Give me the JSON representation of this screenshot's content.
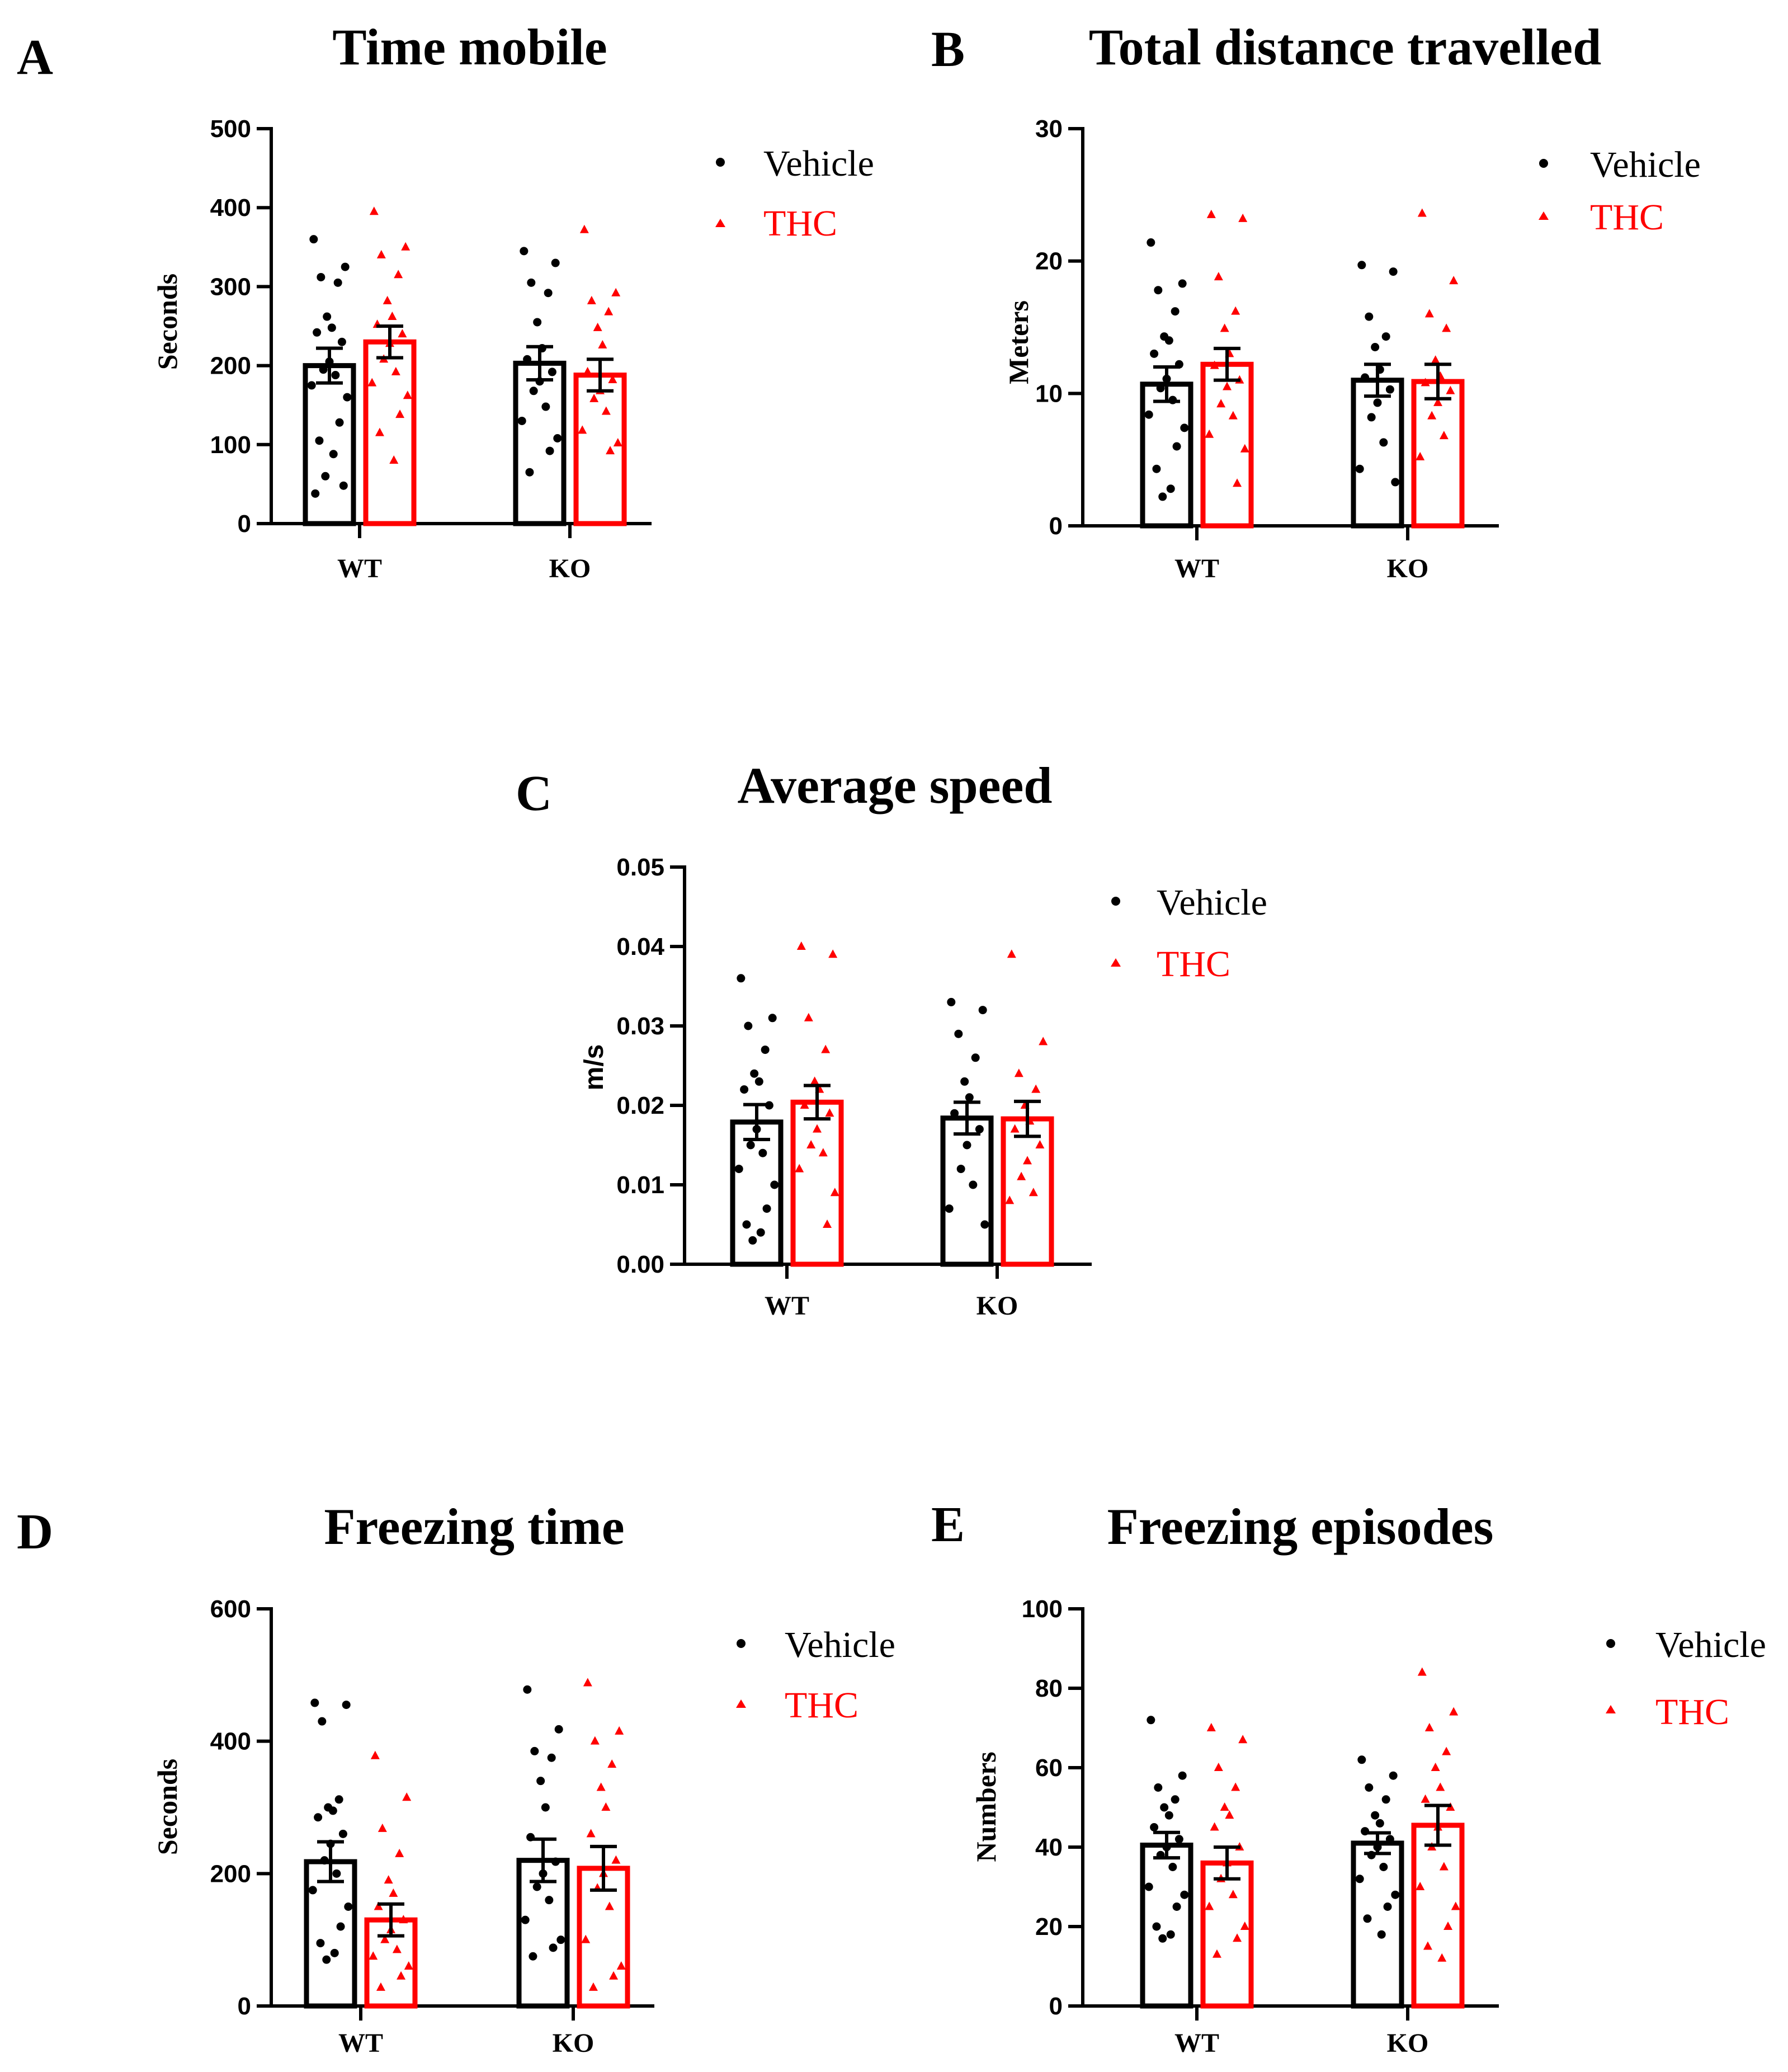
{
  "legend": {
    "vehicle": "Vehicle",
    "thc": "THC"
  },
  "colors": {
    "vehicle": "#000000",
    "thc": "#ff0000"
  },
  "chart_data": [
    {
      "letter": "A",
      "title": "Time mobile",
      "type": "bar",
      "categories": [
        "WT",
        "KO"
      ],
      "ylabel": "Seconds",
      "ylim": [
        0,
        500
      ],
      "yticks": [
        0,
        100,
        200,
        300,
        400,
        500
      ],
      "tick_labels": [
        "0",
        "100",
        "200",
        "300",
        "400",
        "500"
      ],
      "series": [
        {
          "name": "Vehicle",
          "values": [
            200,
            203
          ],
          "sem": [
            22,
            21
          ],
          "points": [
            [
              360,
              325,
              312,
              305,
              262,
              248,
              242,
              230,
              205,
              195,
              188,
              175,
              160,
              128,
              105,
              88,
              60,
              48,
              38
            ],
            [
              345,
              330,
              305,
              292,
              255,
              222,
              208,
              192,
              180,
              168,
              148,
              130,
              108,
              92,
              65
            ]
          ]
        },
        {
          "name": "THC",
          "values": [
            230,
            188
          ],
          "sem": [
            20,
            20
          ],
          "points": [
            [
              395,
              350,
              340,
              315,
              282,
              262,
              252,
              240,
              228,
              208,
              192,
              178,
              162,
              138,
              115,
              80
            ],
            [
              372,
              292,
              282,
              268,
              248,
              226,
              192,
              182,
              168,
              158,
              142,
              118,
              102,
              92
            ]
          ]
        }
      ]
    },
    {
      "letter": "B",
      "title": "Total distance travelled",
      "type": "bar",
      "categories": [
        "WT",
        "KO"
      ],
      "ylabel": "Meters",
      "ylim": [
        0,
        30
      ],
      "yticks": [
        0,
        10,
        20,
        30
      ],
      "tick_labels": [
        "0",
        "10",
        "20",
        "30"
      ],
      "series": [
        {
          "name": "Vehicle",
          "values": [
            10.7,
            11.0
          ],
          "sem": [
            1.3,
            1.2
          ],
          "points": [
            [
              21.4,
              18.3,
              17.8,
              16.2,
              14.3,
              14.0,
              13.0,
              12.2,
              11.1,
              10.4,
              9.5,
              8.4,
              7.4,
              6.0,
              4.3,
              2.8,
              2.2
            ],
            [
              19.7,
              19.2,
              15.8,
              14.3,
              13.5,
              11.8,
              11.2,
              10.3,
              9.3,
              8.2,
              6.3,
              4.3,
              3.3
            ]
          ]
        },
        {
          "name": "THC",
          "values": [
            12.2,
            10.9
          ],
          "sem": [
            1.2,
            1.3
          ],
          "points": [
            [
              23.5,
              23.2,
              18.8,
              16.2,
              14.9,
              13.0,
              12.1,
              11.0,
              10.5,
              9.2,
              8.3,
              6.9,
              5.8,
              3.2
            ],
            [
              23.6,
              18.5,
              16.0,
              14.9,
              12.5,
              11.3,
              10.8,
              10.2,
              9.3,
              8.3,
              6.8,
              5.2
            ]
          ]
        }
      ]
    },
    {
      "letter": "C",
      "title": "Average speed",
      "type": "bar",
      "categories": [
        "WT",
        "KO"
      ],
      "ylabel": "m/s",
      "ylim": [
        0,
        0.05
      ],
      "yticks": [
        0,
        0.01,
        0.02,
        0.03,
        0.04,
        0.05
      ],
      "tick_labels": [
        "0.00",
        "0.01",
        "0.02",
        "0.03",
        "0.04",
        "0.05"
      ],
      "series": [
        {
          "name": "Vehicle",
          "values": [
            0.0179,
            0.0184
          ],
          "sem": [
            0.0022,
            0.002
          ],
          "points": [
            [
              0.036,
              0.031,
              0.03,
              0.027,
              0.024,
              0.023,
              0.022,
              0.02,
              0.017,
              0.015,
              0.014,
              0.012,
              0.01,
              0.007,
              0.005,
              0.004,
              0.003
            ],
            [
              0.033,
              0.032,
              0.029,
              0.026,
              0.023,
              0.021,
              0.019,
              0.017,
              0.015,
              0.012,
              0.01,
              0.007,
              0.005
            ]
          ]
        },
        {
          "name": "THC",
          "values": [
            0.0204,
            0.0183
          ],
          "sem": [
            0.0021,
            0.0022
          ],
          "points": [
            [
              0.04,
              0.039,
              0.031,
              0.027,
              0.023,
              0.022,
              0.02,
              0.019,
              0.017,
              0.015,
              0.014,
              0.012,
              0.009,
              0.005
            ],
            [
              0.039,
              0.028,
              0.024,
              0.022,
              0.02,
              0.018,
              0.017,
              0.015,
              0.013,
              0.011,
              0.009,
              0.008
            ]
          ]
        }
      ]
    },
    {
      "letter": "D",
      "title": "Freezing time",
      "type": "bar",
      "categories": [
        "WT",
        "KO"
      ],
      "ylabel": "Seconds",
      "ylim": [
        0,
        600
      ],
      "yticks": [
        0,
        200,
        400,
        600
      ],
      "tick_labels": [
        "0",
        "200",
        "400",
        "600"
      ],
      "series": [
        {
          "name": "Vehicle",
          "values": [
            218,
            220
          ],
          "sem": [
            30,
            32
          ],
          "points": [
            [
              458,
              455,
              430,
              312,
              300,
              295,
              285,
              260,
              245,
              220,
              200,
              175,
              150,
              120,
              95,
              80,
              70
            ],
            [
              478,
              418,
              385,
              375,
              340,
              300,
              255,
              218,
              200,
              180,
              160,
              130,
              100,
              88,
              75
            ]
          ]
        },
        {
          "name": "THC",
          "values": [
            130,
            208
          ],
          "sem": [
            24,
            33
          ],
          "points": [
            [
              378,
              315,
              268,
              230,
              190,
              170,
              150,
              130,
              115,
              100,
              85,
              75,
              60,
              45,
              28
            ],
            [
              488,
              415,
              400,
              365,
              330,
              300,
              260,
              220,
              200,
              178,
              150,
              100,
              60,
              45,
              28
            ]
          ]
        }
      ]
    },
    {
      "letter": "E",
      "title": "Freezing episodes",
      "type": "bar",
      "categories": [
        "WT",
        "KO"
      ],
      "ylabel": "Numbers",
      "ylim": [
        0,
        100
      ],
      "yticks": [
        0,
        20,
        40,
        60,
        80,
        100
      ],
      "tick_labels": [
        "0",
        "20",
        "40",
        "60",
        "80",
        "100"
      ],
      "series": [
        {
          "name": "Vehicle",
          "values": [
            40.5,
            41.0
          ],
          "sem": [
            3.2,
            2.6
          ],
          "points": [
            [
              72,
              58,
              55,
              52,
              50,
              48,
              45,
              42,
              40,
              38,
              35,
              30,
              28,
              25,
              20,
              18,
              17
            ],
            [
              62,
              58,
              55,
              52,
              48,
              46,
              44,
              42,
              40,
              38,
              35,
              32,
              28,
              25,
              22,
              18
            ]
          ]
        },
        {
          "name": "THC",
          "values": [
            36,
            45.5
          ],
          "sem": [
            4,
            5
          ],
          "points": [
            [
              70,
              67,
              60,
              55,
              50,
              48,
              45,
              40,
              36,
              32,
              28,
              25,
              20,
              17,
              13
            ],
            [
              84,
              74,
              70,
              64,
              60,
              55,
              52,
              50,
              45,
              40,
              35,
              30,
              25,
              20,
              15,
              12
            ]
          ]
        }
      ]
    }
  ]
}
